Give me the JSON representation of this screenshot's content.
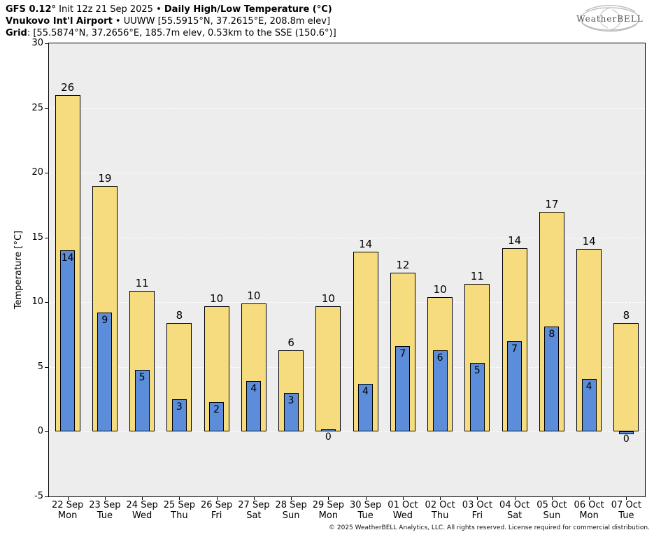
{
  "header": {
    "model": "GFS 0.12°",
    "init": " Init 12z 21 Sep 2025 • ",
    "title": "Daily High/Low Temperature (°C)",
    "station": "Vnukovo Int'l Airport",
    "station_info": " • UUWW [55.5915°N, 37.2615°E, 208.8m elev]",
    "grid_label": "Grid",
    "grid_info": ": [55.5874°N, 37.2656°E, 185.7m elev, 0.53km to the SSE (150.6°)]"
  },
  "logo": {
    "text": "WeatherBELL"
  },
  "footer": {
    "text": "© 2025 WeatherBELL Analytics, LLC. All rights reserved. License required for commercial distribution."
  },
  "chart_data": {
    "type": "bar",
    "title": "Daily High/Low Temperature (°C)",
    "ylabel": "Temperature [°C]",
    "ylim": [
      -5,
      30
    ],
    "yticks": [
      30,
      25,
      20,
      15,
      10,
      5,
      0,
      -5
    ],
    "grid": true,
    "plot_bg": "#ededed",
    "gridline_color": "#ffffff",
    "categories_date": [
      "22 Sep",
      "23 Sep",
      "24 Sep",
      "25 Sep",
      "26 Sep",
      "27 Sep",
      "28 Sep",
      "29 Sep",
      "30 Sep",
      "01 Oct",
      "02 Oct",
      "03 Oct",
      "04 Oct",
      "05 Oct",
      "06 Oct",
      "07 Oct"
    ],
    "categories_day": [
      "Mon",
      "Tue",
      "Wed",
      "Thu",
      "Fri",
      "Sat",
      "Sun",
      "Mon",
      "Tue",
      "Wed",
      "Thu",
      "Fri",
      "Sat",
      "Sun",
      "Mon",
      "Tue"
    ],
    "series": [
      {
        "name": "High",
        "color": "#f6dc7f",
        "labels": [
          26,
          19,
          11,
          8,
          10,
          10,
          6,
          10,
          14,
          12,
          10,
          11,
          14,
          17,
          14,
          8
        ],
        "values": [
          26.0,
          19.0,
          10.9,
          8.4,
          9.7,
          9.9,
          6.3,
          9.7,
          13.9,
          12.3,
          10.4,
          11.4,
          14.2,
          17.0,
          14.1,
          8.4
        ]
      },
      {
        "name": "Low",
        "color": "#5b8ddb",
        "labels": [
          14,
          9,
          5,
          3,
          2,
          4,
          3,
          0,
          4,
          7,
          6,
          5,
          7,
          8,
          4,
          0
        ],
        "values": [
          14.0,
          9.2,
          4.8,
          2.5,
          2.3,
          3.9,
          3.0,
          0.2,
          3.7,
          6.6,
          6.3,
          5.3,
          7.0,
          8.1,
          4.1,
          -0.2
        ]
      }
    ]
  }
}
